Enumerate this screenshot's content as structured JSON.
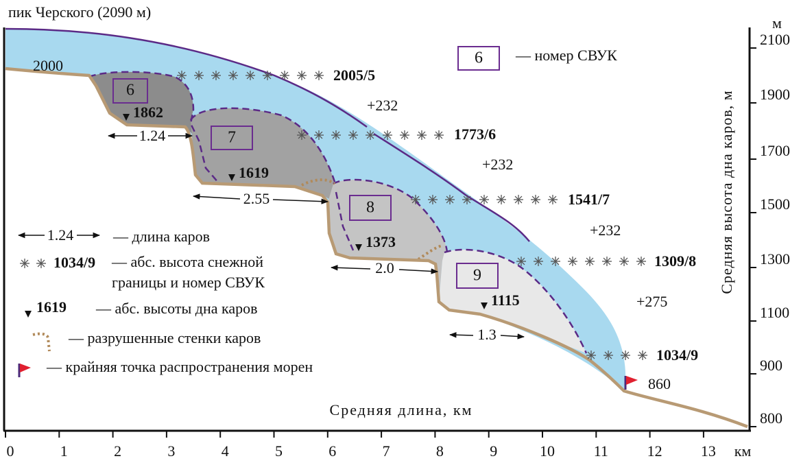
{
  "title": "пик Черского (2090 м)",
  "summit_label": "2000",
  "cirques": [
    {
      "number": "6",
      "floor": "1862",
      "length": "1.24",
      "snowline": "2005/5"
    },
    {
      "number": "7",
      "floor": "1619",
      "length": "2.55",
      "snowline": "1773/6"
    },
    {
      "number": "8",
      "floor": "1373",
      "length": "2.0",
      "snowline": "1541/7"
    },
    {
      "number": "9",
      "floor": "1115",
      "length": "1.3",
      "snowline": "1309/8"
    }
  ],
  "lowest_snowline": "1034/9",
  "deltas": [
    "+232",
    "+232",
    "+232",
    "+275"
  ],
  "terminus": "860",
  "legend": {
    "number_sample": "6",
    "number_text": "— номер СВУК",
    "length_sample": "1.24",
    "length_text": "— длина каров",
    "snow_sample": "1034/9",
    "snow_text": "— абс. высота снежной",
    "snow_text2": "границы и номер СВУК",
    "floor_sample": "1619",
    "floor_text": "— абс. высоты дна каров",
    "walls_text": "— разрушенные стенки каров",
    "flag_text": "— крайняя точка распространения морен"
  },
  "x_axis": {
    "label": "Средняя длина, км",
    "ticks": [
      "0",
      "1",
      "2",
      "3",
      "4",
      "5",
      "6",
      "7",
      "8",
      "9",
      "10",
      "11",
      "12",
      "13"
    ],
    "unit": "км"
  },
  "y_axis": {
    "label": "Средняя высота дна каров, м",
    "ticks": [
      "2100",
      "1900",
      "1700",
      "1500",
      "1300",
      "1100",
      "900",
      "800"
    ],
    "unit": "м"
  }
}
